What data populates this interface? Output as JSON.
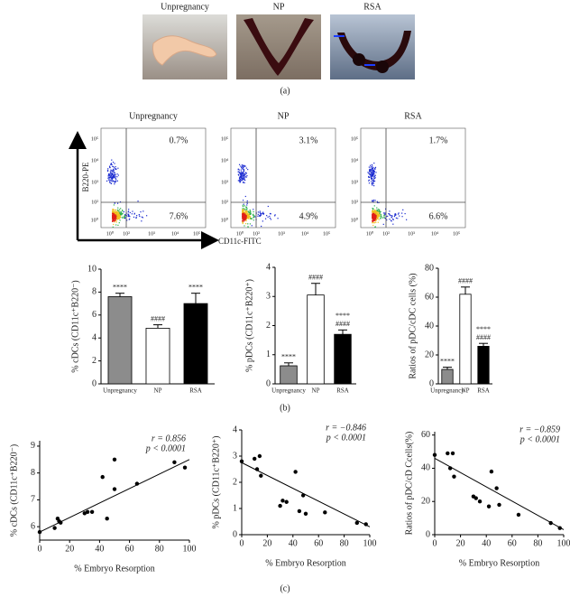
{
  "photos": {
    "labels": [
      "Unpregnancy",
      "NP",
      "RSA"
    ],
    "panel": "(a)"
  },
  "flow": {
    "titles": [
      "Unpregnancy",
      "NP",
      "RSA"
    ],
    "upper_right": [
      "0.7%",
      "3.1%",
      "1.7%"
    ],
    "lower_right": [
      "7.6%",
      "4.9%",
      "6.6%"
    ],
    "y_axis_label": "B220-PE",
    "x_axis_label": "CD11c-FITC",
    "tick_labels": [
      "10⁰",
      "10²",
      "10³",
      "10⁴",
      "10⁵"
    ],
    "panel": "(b)"
  },
  "panel_c": "(c)",
  "chart_data": [
    {
      "type": "bar",
      "ylabel": "% cDCs (CD11c⁺B220⁻)",
      "categories": [
        "Unpregnancy",
        "NP",
        "RSA"
      ],
      "values": [
        7.6,
        4.85,
        7.0
      ],
      "errors": [
        0.3,
        0.3,
        0.9
      ],
      "colors": [
        "#8c8c8c",
        "#ffffff",
        "#000000"
      ],
      "annotations": [
        [
          "****"
        ],
        [
          "####"
        ],
        [
          "****"
        ]
      ],
      "ylim": [
        0,
        10
      ],
      "yticks": [
        0,
        2,
        4,
        6,
        8,
        10
      ]
    },
    {
      "type": "bar",
      "ylabel": "% pDCs (CD11c⁺B220⁺)",
      "categories": [
        "Unpregnancy",
        "NP",
        "RSA"
      ],
      "values": [
        0.62,
        3.05,
        1.7
      ],
      "errors": [
        0.1,
        0.4,
        0.15
      ],
      "colors": [
        "#8c8c8c",
        "#ffffff",
        "#000000"
      ],
      "annotations": [
        [
          "****"
        ],
        [
          "####"
        ],
        [
          "****",
          "####"
        ]
      ],
      "ylim": [
        0,
        4
      ],
      "yticks": [
        0,
        1,
        2,
        3,
        4
      ]
    },
    {
      "type": "bar",
      "ylabel": "Ratios of pDC/cDC cells (%)",
      "categories": [
        "Unpregnancy",
        "NP",
        "RSA"
      ],
      "values": [
        10,
        62,
        26
      ],
      "errors": [
        1.5,
        5,
        2
      ],
      "colors": [
        "#8c8c8c",
        "#ffffff",
        "#000000"
      ],
      "annotations": [
        [
          "****"
        ],
        [
          "####"
        ],
        [
          "****",
          "####"
        ]
      ],
      "ylim": [
        0,
        80
      ],
      "yticks": [
        0,
        20,
        40,
        60,
        80
      ]
    },
    {
      "type": "scatter",
      "ylabel": "% cDCs (CD11c⁺B220⁻)",
      "xlabel": "% Embryo Resorption",
      "x": [
        0,
        10,
        12,
        13,
        14,
        30,
        32,
        35,
        42,
        45,
        50,
        50,
        65,
        90,
        97
      ],
      "values": [
        5.8,
        5.95,
        6.3,
        6.2,
        6.15,
        6.5,
        6.55,
        6.55,
        7.85,
        6.3,
        8.5,
        7.4,
        7.6,
        8.4,
        8.2
      ],
      "trend": {
        "x": [
          0,
          100
        ],
        "y": [
          5.8,
          8.5
        ]
      },
      "r_label": "r = 0.856",
      "p_label": "p < 0.0001",
      "xlim": [
        0,
        100
      ],
      "xticks": [
        0,
        20,
        40,
        60,
        80,
        100
      ],
      "ylim": [
        5.5,
        9.2
      ],
      "yticks": [
        6,
        7,
        8,
        9
      ]
    },
    {
      "type": "scatter",
      "ylabel": "% pDCs (CD11c⁺B220⁺)",
      "xlabel": "% Embryo Resorption",
      "x": [
        0,
        10,
        12,
        14,
        15,
        30,
        32,
        35,
        42,
        45,
        48,
        50,
        65,
        90,
        97
      ],
      "values": [
        2.8,
        2.9,
        2.5,
        3.0,
        2.25,
        1.1,
        1.3,
        1.25,
        2.4,
        0.9,
        1.5,
        0.8,
        0.85,
        0.45,
        0.4
      ],
      "trend": {
        "x": [
          0,
          100
        ],
        "y": [
          2.75,
          0.3
        ]
      },
      "r_label": "r = −0.846",
      "p_label": "p < 0.0001",
      "xlim": [
        0,
        100
      ],
      "xticks": [
        0,
        20,
        40,
        60,
        80,
        100
      ],
      "ylim": [
        0,
        4
      ],
      "yticks": [
        0,
        1,
        2,
        3,
        4
      ]
    },
    {
      "type": "scatter",
      "ylabel": "Ratios of pDC/cD Ccells(%)",
      "xlabel": "% Embryo Resorption",
      "x": [
        0,
        10,
        12,
        14,
        15,
        30,
        32,
        35,
        42,
        44,
        48,
        50,
        65,
        90,
        97
      ],
      "values": [
        48,
        49,
        40,
        49,
        35,
        23,
        22,
        20,
        17,
        38,
        28,
        18,
        12,
        7,
        4
      ],
      "trend": {
        "x": [
          0,
          100
        ],
        "y": [
          46,
          3
        ]
      },
      "r_label": "r = −0.859",
      "p_label": "p < 0.0001",
      "xlim": [
        0,
        100
      ],
      "xticks": [
        0,
        20,
        40,
        60,
        80,
        100
      ],
      "ylim": [
        0,
        62
      ],
      "yticks": [
        0,
        20,
        40,
        60
      ]
    }
  ]
}
